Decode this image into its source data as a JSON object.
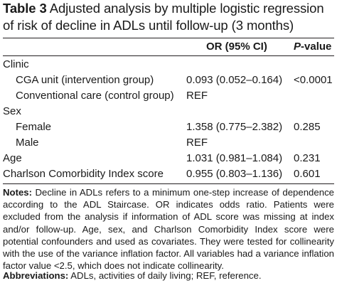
{
  "caption": {
    "label": "Table 3",
    "text": "Adjusted analysis by multiple logistic regression of risk of decline in ADLs until follow-up (3 months)"
  },
  "table": {
    "headers": {
      "or": "OR (95% CI)",
      "p_italic": "P",
      "p_rest": "-value"
    },
    "rows": [
      {
        "label": "Clinic",
        "or": "",
        "p": ""
      },
      {
        "label": "CGA unit (intervention group)",
        "or": "0.093 (0.052–0.164)",
        "p": "<0.0001"
      },
      {
        "label": "Conventional care (control group)",
        "or": "REF",
        "p": ""
      },
      {
        "label": "Sex",
        "or": "",
        "p": ""
      },
      {
        "label": "Female",
        "or": "1.358 (0.775–2.382)",
        "p": "0.285"
      },
      {
        "label": "Male",
        "or": "REF",
        "p": ""
      },
      {
        "label": "Age",
        "or": "1.031 (0.981–1.084)",
        "p": "0.231"
      },
      {
        "label": "Charlson Comorbidity Index score",
        "or": "0.955 (0.803–1.136)",
        "p": "0.601"
      }
    ]
  },
  "notes": {
    "label": "Notes:",
    "text": "Decline in ADLs refers to a minimum one-step increase of dependence according to the ADL Staircase. OR indicates odds ratio. Patients were excluded from the analysis if information of ADL score was missing at index and/or follow-up. Age, sex, and Charlson Comorbidity Index score were potential confounders and used as covariates. They were tested for collinearity with the use of the variance inflation factor. All variables had a variance inflation factor value <2.5, which does not indicate collinearity."
  },
  "abbreviations": {
    "label": "Abbreviations:",
    "text": "ADLs, activities of daily living; REF, reference."
  }
}
